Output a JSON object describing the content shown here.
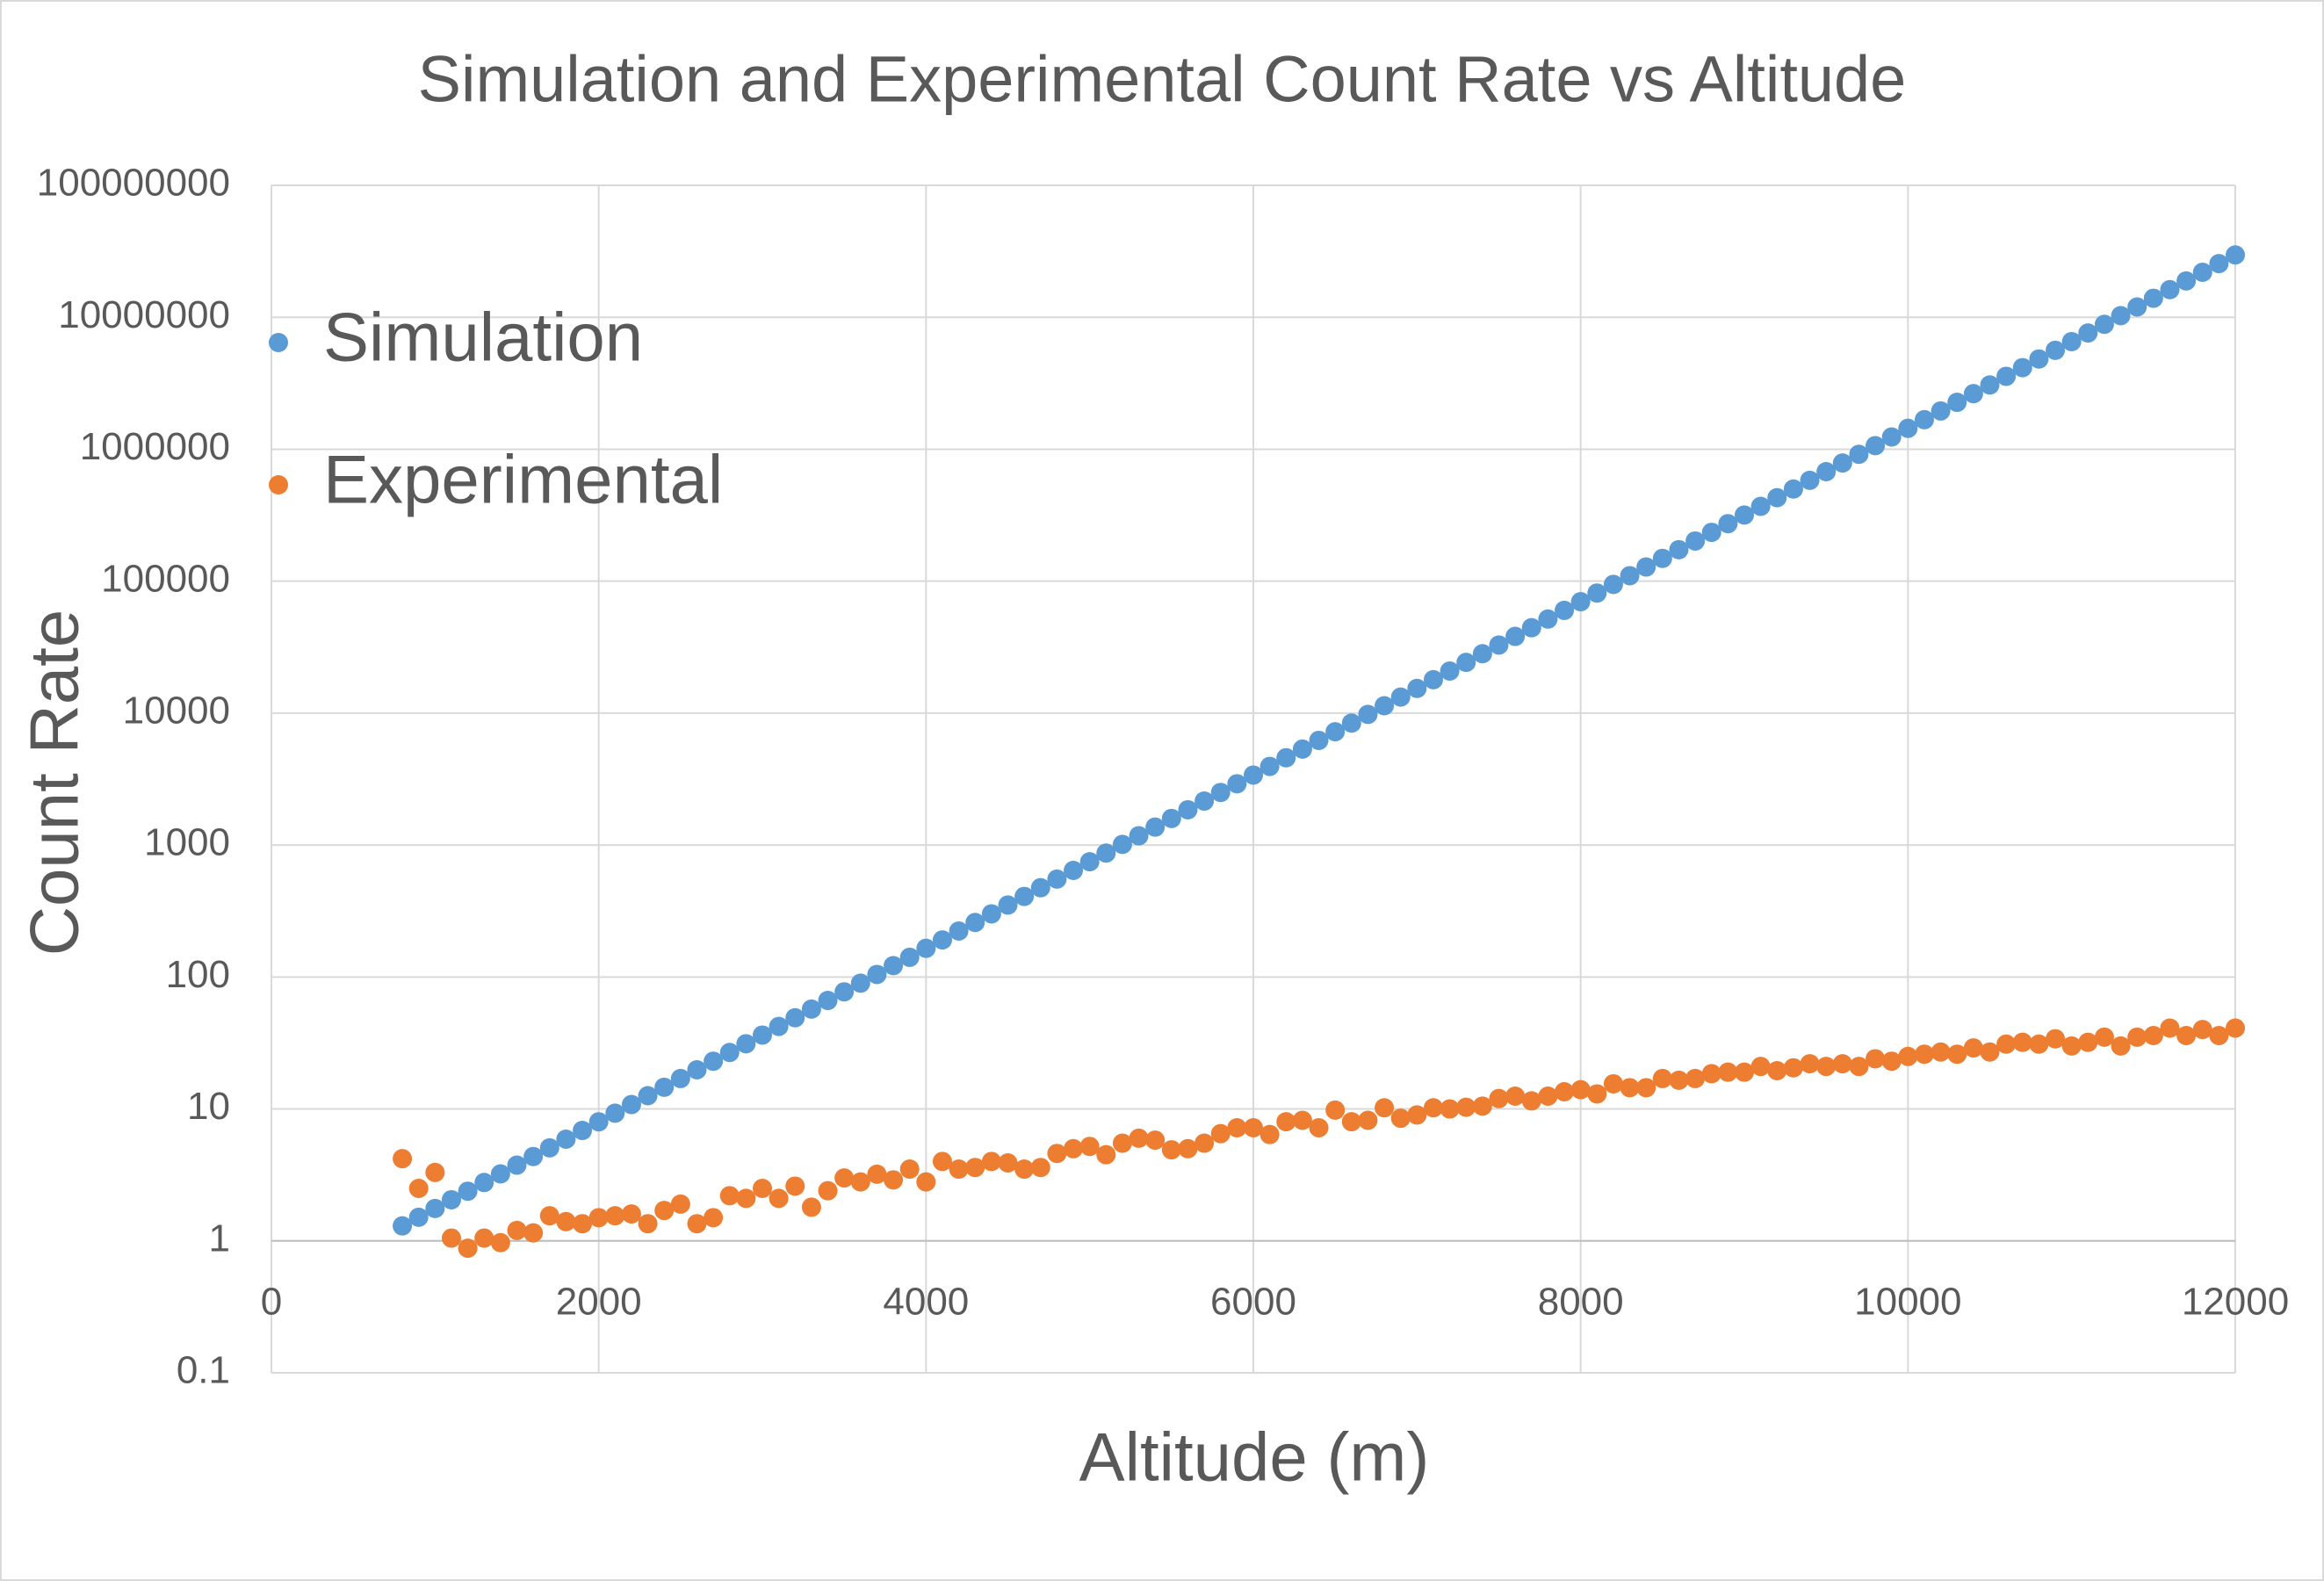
{
  "chart_data": {
    "type": "scatter",
    "title": "Simulation and Experimental Count Rate vs Altitude",
    "x_label": "Altitude (m)",
    "y_label": "Count Rate",
    "xlim": [
      0,
      12000
    ],
    "xticks": [
      0,
      2000,
      4000,
      6000,
      8000,
      10000,
      12000
    ],
    "ylim": [
      0.1,
      100000000
    ],
    "yticks": [
      0.1,
      1,
      10,
      100,
      1000,
      10000,
      100000,
      1000000,
      10000000,
      100000000
    ],
    "y_log_scale": true,
    "x_axis_at": 1,
    "grid": true,
    "legend": "upper left",
    "x": [
      800,
      900,
      1000,
      1100,
      1200,
      1300,
      1400,
      1500,
      1600,
      1700,
      1800,
      1900,
      2000,
      2100,
      2200,
      2300,
      2400,
      2500,
      2600,
      2700,
      2800,
      2900,
      3000,
      3100,
      3200,
      3300,
      3400,
      3500,
      3600,
      3700,
      3800,
      3900,
      4000,
      4100,
      4200,
      4300,
      4400,
      4500,
      4600,
      4700,
      4800,
      4900,
      5000,
      5100,
      5200,
      5300,
      5400,
      5500,
      5600,
      5700,
      5800,
      5900,
      6000,
      6100,
      6200,
      6300,
      6400,
      6500,
      6600,
      6700,
      6800,
      6900,
      7000,
      7100,
      7200,
      7300,
      7400,
      7500,
      7600,
      7700,
      7800,
      7900,
      8000,
      8100,
      8200,
      8300,
      8400,
      8500,
      8600,
      8700,
      8800,
      8900,
      9000,
      9100,
      9200,
      9300,
      9400,
      9500,
      9600,
      9700,
      9800,
      9900,
      10000,
      10100,
      10200,
      10300,
      10400,
      10500,
      10600,
      10700,
      10800,
      10900,
      11000,
      11100,
      11200,
      11300,
      11400,
      11500,
      11600,
      11700,
      11800,
      11900,
      12000
    ],
    "series": [
      {
        "name": "Simulation",
        "color": "#5b9bd5",
        "values": [
          1.3,
          1.51,
          1.76,
          2.05,
          2.38,
          2.77,
          3.22,
          3.75,
          4.36,
          5.07,
          5.9,
          6.87,
          7.99,
          9.29,
          10.8,
          12.6,
          14.6,
          17,
          19.8,
          23,
          26.8,
          31.2,
          36.3,
          42.2,
          49.1,
          57.1,
          66.4,
          77.2,
          89.8,
          104.5,
          122,
          141,
          165,
          191,
          223,
          259,
          301,
          351,
          408,
          475,
          552,
          642,
          747,
          869,
          1011,
          1176,
          1368,
          1591,
          1851,
          2154,
          2505,
          2914,
          3390,
          3945,
          4588,
          5338,
          6210,
          7224,
          8404,
          9777,
          11374,
          13231,
          15392,
          17906,
          20830,
          24233,
          28190,
          32795,
          38150,
          44380,
          51630,
          60060,
          69870,
          81280,
          94560,
          110000,
          128000,
          148900,
          173200,
          201500,
          234400,
          272700,
          317200,
          369000,
          429300,
          499400,
          581000,
          675900,
          786300,
          914700,
          1064000,
          1238000,
          1440000,
          1675000,
          1949000,
          2267000,
          2637000,
          3068000,
          3569000,
          4152000,
          4830000,
          5619000,
          6537000,
          7603000,
          8845000,
          10290000,
          11970000,
          13930000,
          16200000,
          18850000,
          21930000,
          25510000,
          29670000
        ]
      },
      {
        "name": "Experimental",
        "color": "#ed7d31",
        "values": [
          4.2,
          2.5,
          3.3,
          1.05,
          0.88,
          1.05,
          0.97,
          1.2,
          1.15,
          1.55,
          1.4,
          1.35,
          1.5,
          1.55,
          1.6,
          1.35,
          1.7,
          1.9,
          1.35,
          1.5,
          2.2,
          2.1,
          2.5,
          2.1,
          2.6,
          1.8,
          2.4,
          3.0,
          2.8,
          3.2,
          2.9,
          3.5,
          2.8,
          4.0,
          3.5,
          3.6,
          4.0,
          3.9,
          3.5,
          3.6,
          4.6,
          5.0,
          5.2,
          4.5,
          5.5,
          6.0,
          5.8,
          4.9,
          5.0,
          5.5,
          6.5,
          7.2,
          7.2,
          6.4,
          8.0,
          8.2,
          7.2,
          9.8,
          8.0,
          8.2,
          10.2,
          8.5,
          9.0,
          10.2,
          10.0,
          10.3,
          10.5,
          12,
          12.5,
          11.5,
          12.5,
          13.5,
          14,
          13,
          15.5,
          14.5,
          14.5,
          17,
          16.5,
          17,
          18.5,
          19,
          19,
          21,
          19.5,
          20.5,
          22,
          21,
          22,
          21,
          24,
          23,
          25,
          26,
          27,
          26,
          29,
          27,
          31,
          32,
          31,
          34,
          30,
          32,
          35,
          30,
          35,
          36,
          41,
          36,
          40,
          36,
          41
        ]
      }
    ]
  }
}
